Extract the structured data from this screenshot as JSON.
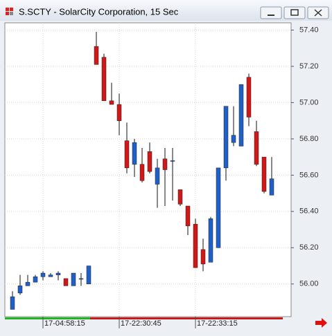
{
  "chart_data": {
    "type": "candlestick",
    "title": "S.SCTY - SolarCity Corporation, 15 Sec",
    "categories": [
      null,
      null,
      null,
      null,
      "17-04:58:15",
      null,
      null,
      null,
      null,
      null,
      null,
      null,
      null,
      null,
      "17-22:30:45",
      null,
      null,
      null,
      null,
      null,
      null,
      null,
      null,
      null,
      "17-22:33:15",
      null,
      null,
      null,
      null,
      null,
      null,
      null,
      null,
      null,
      null
    ],
    "open": [
      55.86,
      55.95,
      55.99,
      56.01,
      56.04,
      56.04,
      56.05,
      56.03,
      55.99,
      56.03,
      56.0,
      57.31,
      57.25,
      57.01,
      56.99,
      56.79,
      56.66,
      56.66,
      56.73,
      56.55,
      56.69,
      56.68,
      56.52,
      56.43,
      56.33,
      56.19,
      56.12,
      56.2,
      56.64,
      56.78,
      56.76,
      57.14,
      56.84,
      56.7,
      56.49
    ],
    "high": [
      55.96,
      56.05,
      56.05,
      56.05,
      56.07,
      56.06,
      56.07,
      56.03,
      56.06,
      56.06,
      56.1,
      57.39,
      57.27,
      57.11,
      57.05,
      56.89,
      56.8,
      56.75,
      56.78,
      56.69,
      56.75,
      56.75,
      56.52,
      56.43,
      56.36,
      56.25,
      56.37,
      56.64,
      56.98,
      56.98,
      57.1,
      57.16,
      56.9,
      56.7,
      56.7
    ],
    "low": [
      55.86,
      55.94,
      55.99,
      56.01,
      56.02,
      56.04,
      56.02,
      55.99,
      55.99,
      55.99,
      56.0,
      57.21,
      57.01,
      56.99,
      56.82,
      56.61,
      56.59,
      56.56,
      56.61,
      56.42,
      56.43,
      56.46,
      56.43,
      56.27,
      56.09,
      56.07,
      56.12,
      56.2,
      56.57,
      56.76,
      56.76,
      56.87,
      56.65,
      56.5,
      56.49
    ],
    "close": [
      55.93,
      55.99,
      56.01,
      56.04,
      56.06,
      56.05,
      56.06,
      55.99,
      56.06,
      56.03,
      56.1,
      57.21,
      57.01,
      56.99,
      56.9,
      56.64,
      56.78,
      56.57,
      56.62,
      56.64,
      56.63,
      56.68,
      56.44,
      56.32,
      56.09,
      56.11,
      56.36,
      56.64,
      56.98,
      56.82,
      57.1,
      56.92,
      56.66,
      56.51,
      56.58
    ],
    "up_color": "#1f5fc8",
    "down_color": "#d01818",
    "ylim": [
      55.82,
      57.44
    ],
    "yticks": [
      {
        "value": 56.0,
        "label": "56.00"
      },
      {
        "value": 56.2,
        "label": "56.20"
      },
      {
        "value": 56.4,
        "label": "56.40"
      },
      {
        "value": 56.6,
        "label": "56.60"
      },
      {
        "value": 56.8,
        "label": "56.80"
      },
      {
        "value": 57.0,
        "label": "57.00"
      },
      {
        "value": 57.2,
        "label": "57.20"
      },
      {
        "value": 57.4,
        "label": "57.40"
      }
    ],
    "grid": true
  }
}
